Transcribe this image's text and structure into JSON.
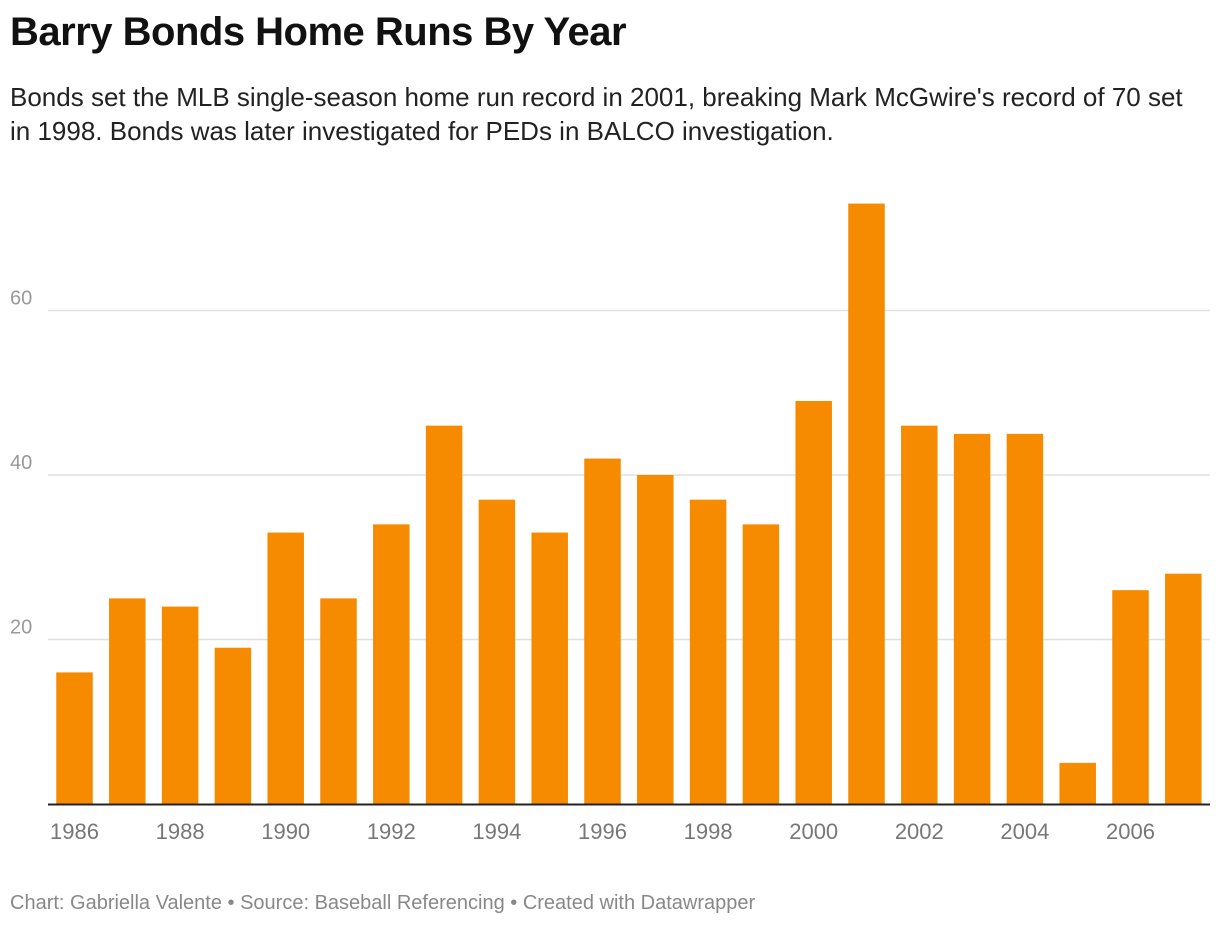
{
  "header": {
    "title": "Barry Bonds Home Runs By Year",
    "subtitle": "Bonds set the MLB single-season home run record in 2001, breaking Mark McGwire's record of 70 set in 1998. Bonds was later investigated for PEDs in BALCO investigation."
  },
  "footer": {
    "chart_credit": "Chart: Gabriella Valente",
    "separator": " • ",
    "source": "Source: Baseball Referencing",
    "separator2": " • ",
    "created": "Created with Datawrapper"
  },
  "colors": {
    "bar": "#f78b00",
    "grid": "#e0e0e0",
    "axis": "#222222",
    "tick_text": "#777777",
    "y_tick_text": "#999999"
  },
  "chart_data": {
    "type": "bar",
    "title": "Barry Bonds Home Runs By Year",
    "categories": [
      "1986",
      "1987",
      "1988",
      "1989",
      "1990",
      "1991",
      "1992",
      "1993",
      "1994",
      "1995",
      "1996",
      "1997",
      "1998",
      "1999",
      "2000",
      "2001",
      "2002",
      "2003",
      "2004",
      "2005",
      "2006",
      "2007"
    ],
    "values": [
      16,
      25,
      24,
      19,
      33,
      25,
      34,
      46,
      37,
      33,
      42,
      40,
      37,
      34,
      49,
      73,
      46,
      45,
      45,
      5,
      26,
      28
    ],
    "x_tick_labels": [
      "1986",
      "1988",
      "1990",
      "1992",
      "1994",
      "1996",
      "1998",
      "2000",
      "2002",
      "2004",
      "2006"
    ],
    "y_ticks": [
      20,
      40,
      60
    ],
    "ylim": [
      0,
      80
    ],
    "grid": true,
    "xlabel": "",
    "ylabel": ""
  }
}
